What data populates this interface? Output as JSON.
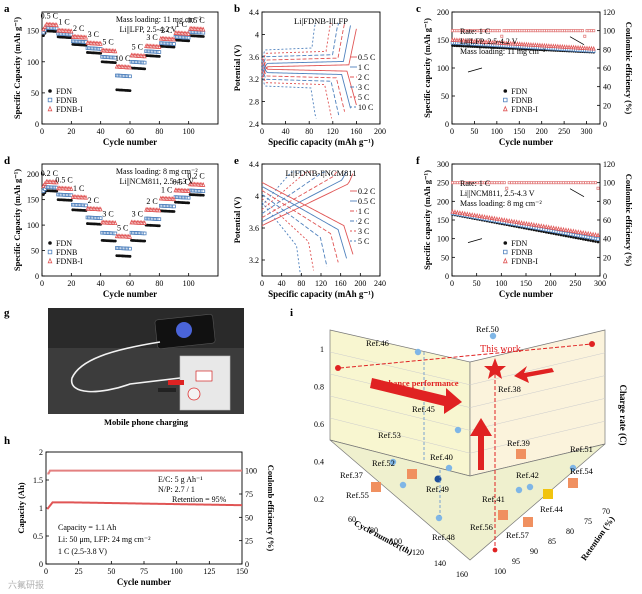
{
  "watermark": "六氟研报",
  "panel_labels": [
    "a",
    "b",
    "c",
    "d",
    "e",
    "f",
    "g",
    "h",
    "i"
  ],
  "colors": {
    "FDN": "#111111",
    "FDNB": "#4f81bd",
    "FDNB-I": "#e05555",
    "ce": "#e38080"
  },
  "chart_data": [
    {
      "id": "a",
      "type": "scatter",
      "ylabel": "Specific Capacity (mAh g⁻¹)",
      "xlabel": "Cycle number",
      "xlim": [
        0,
        120
      ],
      "ylim": [
        0,
        180
      ],
      "xticks": [
        0,
        20,
        40,
        60,
        80,
        100
      ],
      "yticks": [
        0,
        50,
        100,
        150
      ],
      "annotations": [
        "Mass loading: 11 mg cm⁻²",
        "Li||LFP, 2.5-4.2 V"
      ],
      "rate_labels": [
        "0.5 C",
        "1 C",
        "2 C",
        "3 C",
        "5 C",
        "10 C",
        "5 C",
        "3 C",
        "2 C",
        "1 C",
        "0.5 C"
      ],
      "series": [
        {
          "name": "FDN",
          "steps": [
            150,
            140,
            128,
            115,
            100,
            55,
            90,
            110,
            125,
            135,
            142
          ]
        },
        {
          "name": "FDNB",
          "steps": [
            155,
            145,
            133,
            122,
            108,
            78,
            100,
            117,
            130,
            140,
            148
          ]
        },
        {
          "name": "FDNB-I",
          "steps": [
            160,
            150,
            140,
            130,
            118,
            92,
            110,
            125,
            137,
            146,
            153
          ]
        }
      ],
      "legend": [
        "FDN",
        "FDNB",
        "FDNB-I"
      ],
      "legend_position": "bottom-left"
    },
    {
      "id": "b",
      "type": "line",
      "title": "Li|FDNB-I|LFP",
      "xlabel": "Specific capacity (mAh g⁻¹)",
      "ylabel": "Potential (V)",
      "xlim": [
        0,
        200
      ],
      "ylim": [
        2.4,
        4.4
      ],
      "xticks": [
        0,
        40,
        80,
        120,
        160,
        200
      ],
      "yticks": [
        2.4,
        2.8,
        3.2,
        3.6,
        4.0,
        4.4
      ],
      "series": [
        {
          "name": "0.5 C",
          "capacity": 160
        },
        {
          "name": "1 C",
          "capacity": 150
        },
        {
          "name": "2 C",
          "capacity": 140
        },
        {
          "name": "3 C",
          "capacity": 130
        },
        {
          "name": "5 C",
          "capacity": 118
        },
        {
          "name": "10 C",
          "capacity": 92
        }
      ]
    },
    {
      "id": "c",
      "type": "scatter",
      "ylabel": "Specific capacity (mAh g⁻¹)",
      "xlabel": "Cycle number",
      "y2label": "Coulombic efficiency (%)",
      "xlim": [
        0,
        330
      ],
      "ylim": [
        0,
        200
      ],
      "y2lim": [
        0,
        120
      ],
      "xticks": [
        0,
        50,
        100,
        150,
        200,
        250,
        300
      ],
      "yticks": [
        0,
        50,
        100,
        150,
        200
      ],
      "y2ticks": [
        0,
        20,
        40,
        60,
        80,
        100,
        120
      ],
      "annotations": [
        "Rate: 1 C",
        "Li||LFP, 2.5-4.2 V",
        "Mass loading: 11 mg cm⁻²"
      ],
      "series": [
        {
          "name": "FDN",
          "start": 140,
          "end": 128
        },
        {
          "name": "FDNB",
          "start": 145,
          "end": 130
        },
        {
          "name": "FDNB-I",
          "start": 150,
          "end": 134
        }
      ],
      "ce": 100,
      "legend": [
        "FDN",
        "FDNB",
        "FDNB-I"
      ]
    },
    {
      "id": "d",
      "type": "scatter",
      "ylabel": "Specific Capacity (mAh g⁻¹)",
      "xlabel": "Cycle number",
      "xlim": [
        0,
        120
      ],
      "ylim": [
        0,
        220
      ],
      "xticks": [
        0,
        20,
        40,
        60,
        80,
        100
      ],
      "yticks": [
        0,
        50,
        100,
        150,
        200
      ],
      "annotations": [
        "Mass loading: 8 mg cm⁻²",
        "Li||NCM811, 2.5-4.3 V"
      ],
      "rate_labels": [
        "0.2 C",
        "0.5 C",
        "1 C",
        "2 C",
        "3 C",
        "5 C",
        "3 C",
        "2 C",
        "1 C",
        "0.5 C",
        "0.2 C"
      ],
      "series": [
        {
          "name": "FDN",
          "steps": [
            168,
            150,
            130,
            103,
            70,
            40,
            70,
            100,
            128,
            145,
            160
          ]
        },
        {
          "name": "FDNB",
          "steps": [
            175,
            160,
            140,
            115,
            85,
            55,
            85,
            113,
            138,
            155,
            168
          ]
        },
        {
          "name": "FDNB-I",
          "steps": [
            185,
            172,
            155,
            132,
            105,
            78,
            105,
            130,
            152,
            168,
            180
          ]
        }
      ],
      "legend": [
        "FDN",
        "FDNB",
        "FDNB-I"
      ]
    },
    {
      "id": "e",
      "type": "line",
      "title": "Li|FDNB-I|NCM811",
      "xlabel": "Specific capacity (mAh g⁻¹)",
      "ylabel": "Potential (V)",
      "xlim": [
        0,
        240
      ],
      "ylim": [
        3.0,
        4.4
      ],
      "xticks": [
        0,
        40,
        80,
        120,
        160,
        200,
        240
      ],
      "yticks": [
        3.2,
        3.6,
        4.0,
        4.4
      ],
      "series": [
        {
          "name": "0.2 C",
          "capacity": 185
        },
        {
          "name": "0.5 C",
          "capacity": 172
        },
        {
          "name": "1 C",
          "capacity": 155
        },
        {
          "name": "2 C",
          "capacity": 132
        },
        {
          "name": "3 C",
          "capacity": 105
        },
        {
          "name": "5 C",
          "capacity": 78
        }
      ]
    },
    {
      "id": "f",
      "type": "scatter",
      "ylabel": "Specific capacity (mAh g⁻¹)",
      "xlabel": "Cycle number",
      "y2label": "Coulombic efficiency (%)",
      "xlim": [
        0,
        300
      ],
      "ylim": [
        0,
        300
      ],
      "y2lim": [
        0,
        120
      ],
      "xticks": [
        0,
        50,
        100,
        150,
        200,
        250,
        300
      ],
      "yticks": [
        0,
        50,
        100,
        150,
        200,
        250,
        300
      ],
      "y2ticks": [
        0,
        20,
        40,
        60,
        80,
        100,
        120
      ],
      "annotations": [
        "Rate: 1 C",
        "Li||NCM811, 2.5-4.3 V",
        "Mass loading: 8 mg cm⁻²"
      ],
      "series": [
        {
          "name": "FDN",
          "start": 165,
          "end": 90
        },
        {
          "name": "FDNB",
          "start": 168,
          "end": 98
        },
        {
          "name": "FDNB-I",
          "start": 172,
          "end": 108
        }
      ],
      "ce": 100,
      "legend": [
        "FDN",
        "FDNB",
        "FDNB-I"
      ]
    },
    {
      "id": "h",
      "type": "line",
      "ylabel": "Capacity (Ah)",
      "xlabel": "Cycle number",
      "y2label": "Coulomb efficiency (%)",
      "xlim": [
        0,
        150
      ],
      "ylim": [
        0,
        2.0
      ],
      "y2lim": [
        0,
        120
      ],
      "xticks": [
        0,
        25,
        50,
        75,
        100,
        125,
        150
      ],
      "yticks": [
        0.0,
        0.5,
        1.0,
        1.5,
        2.0
      ],
      "y2ticks": [
        0,
        25,
        50,
        75,
        100
      ],
      "annotations": [
        "E/C: 5 g Ah⁻¹",
        "N/P: 2.7 / 1",
        "Retention = 95%",
        "Capacity = 1.1 Ah",
        "Li: 50 μm, LFP: 24 mg cm⁻²",
        "1 C  (2.5-3.8 V)"
      ],
      "capacity_start": 1.1,
      "capacity_end": 1.05,
      "ce": 100
    },
    {
      "id": "i",
      "type": "scatter",
      "xlabel": "Cycle number(th)",
      "ylabel": "Retention (%)",
      "zlabel": "Charge rate (C)",
      "xticks": [
        60,
        80,
        100,
        120,
        140,
        160
      ],
      "yticks": [
        70,
        75,
        80,
        85,
        90,
        95,
        100
      ],
      "zticks": [
        0.2,
        0.4,
        0.6,
        0.8,
        1.0
      ],
      "annotations": [
        "This work",
        "Enhance performance"
      ],
      "points": [
        "Ref.50",
        "Ref.46",
        "Ref.38",
        "Ref.45",
        "Ref.53",
        "Ref.40",
        "Ref.39",
        "Ref.51",
        "Ref.52",
        "Ref.37",
        "Ref.49",
        "Ref.42",
        "Ref.54",
        "Ref.41",
        "Ref.55",
        "Ref.44",
        "Ref.56",
        "Ref.57",
        "Ref.48"
      ]
    }
  ],
  "photo_caption": "Mobile phone charging"
}
